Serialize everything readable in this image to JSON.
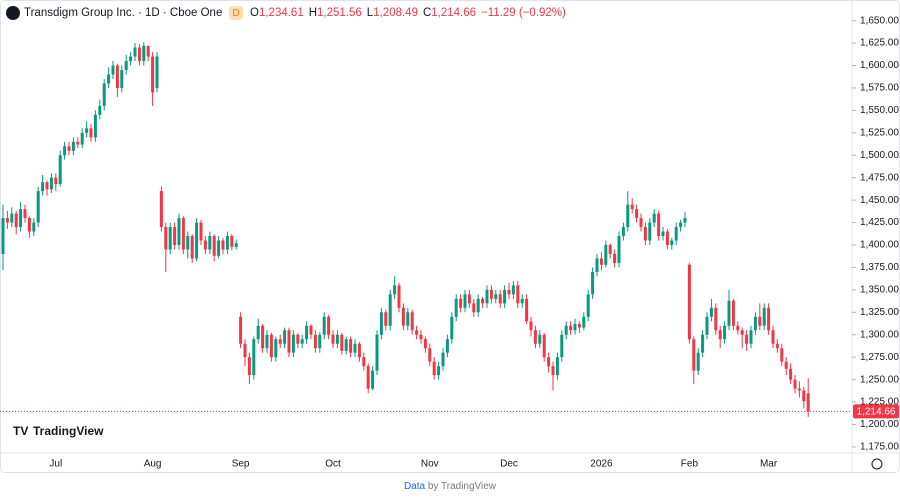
{
  "chart_data": {
    "type": "candlestick",
    "title": "Transdigm Group Inc. · 1D · Cboe One",
    "badge": "D",
    "ohlc_legend": [
      {
        "label": "O",
        "value": "1,234.61"
      },
      {
        "label": "H",
        "value": "1,251.56"
      },
      {
        "label": "L",
        "value": "1,208.49"
      },
      {
        "label": "C",
        "value": "1,214.66"
      }
    ],
    "change": "−11.29 (−0.92%)",
    "last_price_label": "1,214.66",
    "logo": "TradingView",
    "footer": {
      "link": "Data",
      "text": "by TradingView"
    },
    "up_color": "#089981",
    "down_color": "#f23645",
    "ylim": [
      1166,
      1673
    ],
    "yticks": [
      {
        "value": 1175,
        "label": "1,175.00"
      },
      {
        "value": 1200,
        "label": "1,200.00"
      },
      {
        "value": 1225,
        "label": "1,225.00"
      },
      {
        "value": 1250,
        "label": "1,250.00"
      },
      {
        "value": 1275,
        "label": "1,275.00"
      },
      {
        "value": 1300,
        "label": "1,300.00"
      },
      {
        "value": 1325,
        "label": "1,325.00"
      },
      {
        "value": 1350,
        "label": "1,350.00"
      },
      {
        "value": 1375,
        "label": "1,375.00"
      },
      {
        "value": 1400,
        "label": "1,400.00"
      },
      {
        "value": 1425,
        "label": "1,425.00"
      },
      {
        "value": 1450,
        "label": "1,450.00"
      },
      {
        "value": 1475,
        "label": "1,475.00"
      },
      {
        "value": 1500,
        "label": "1,500.00"
      },
      {
        "value": 1525,
        "label": "1,525.00"
      },
      {
        "value": 1550,
        "label": "1,550.00"
      },
      {
        "value": 1575,
        "label": "1,575.00"
      },
      {
        "value": 1600,
        "label": "1,600.00"
      },
      {
        "value": 1625,
        "label": "1,625.00"
      },
      {
        "value": 1650,
        "label": "1,650.00"
      }
    ],
    "categories": [
      null,
      null,
      null,
      null,
      null,
      null,
      null,
      null,
      null,
      null,
      null,
      null,
      "Jul",
      null,
      null,
      null,
      null,
      null,
      null,
      null,
      null,
      null,
      null,
      null,
      null,
      null,
      null,
      null,
      null,
      null,
      null,
      null,
      null,
      null,
      "Aug",
      null,
      null,
      null,
      null,
      null,
      null,
      null,
      null,
      null,
      null,
      null,
      null,
      null,
      null,
      null,
      null,
      null,
      null,
      null,
      "Sep",
      null,
      null,
      null,
      null,
      null,
      null,
      null,
      null,
      null,
      null,
      null,
      null,
      null,
      null,
      null,
      null,
      null,
      null,
      null,
      null,
      "Oct",
      null,
      null,
      null,
      null,
      null,
      null,
      null,
      null,
      null,
      null,
      null,
      null,
      null,
      null,
      null,
      null,
      null,
      null,
      null,
      null,
      null,
      "Nov",
      null,
      null,
      null,
      null,
      null,
      null,
      null,
      null,
      null,
      null,
      null,
      null,
      null,
      null,
      null,
      null,
      null,
      "Dec",
      null,
      null,
      null,
      null,
      null,
      null,
      null,
      null,
      null,
      null,
      null,
      null,
      null,
      null,
      null,
      null,
      null,
      null,
      null,
      null,
      "2026",
      null,
      null,
      null,
      null,
      null,
      null,
      null,
      null,
      null,
      null,
      null,
      null,
      null,
      null,
      null,
      null,
      null,
      null,
      null,
      "Feb",
      null,
      null,
      null,
      null,
      null,
      null,
      null,
      null,
      null,
      null,
      null,
      null,
      null,
      null,
      null,
      null,
      null,
      "Mar",
      null,
      null,
      null,
      null,
      null,
      null,
      null,
      null,
      null
    ],
    "open": [
      1390,
      1430,
      1425,
      1435,
      1420,
      1440,
      1430,
      1415,
      1425,
      1460,
      1470,
      1462,
      1475,
      1468,
      1500,
      1510,
      1505,
      1515,
      1512,
      1525,
      1530,
      1520,
      1545,
      1555,
      1580,
      1590,
      1600,
      1575,
      1595,
      1605,
      1610,
      1620,
      1605,
      1622,
      1610,
      1575,
      1460,
      1420,
      1395,
      1420,
      1400,
      1430,
      1395,
      1410,
      1385,
      1425,
      1405,
      1395,
      1410,
      1388,
      1405,
      1395,
      1410,
      1398,
      1320,
      1290,
      1275,
      1255,
      1295,
      1310,
      1285,
      1300,
      1275,
      1295,
      1290,
      1305,
      1280,
      1300,
      1290,
      1295,
      1310,
      1300,
      1285,
      1300,
      1320,
      1300,
      1290,
      1300,
      1282,
      1295,
      1280,
      1290,
      1275,
      1265,
      1240,
      1260,
      1300,
      1325,
      1310,
      1345,
      1355,
      1330,
      1310,
      1325,
      1305,
      1300,
      1295,
      1285,
      1270,
      1255,
      1265,
      1280,
      1295,
      1320,
      1340,
      1330,
      1345,
      1335,
      1325,
      1340,
      1335,
      1350,
      1340,
      1345,
      1335,
      1350,
      1345,
      1355,
      1335,
      1340,
      1315,
      1305,
      1290,
      1300,
      1275,
      1265,
      1255,
      1275,
      1300,
      1310,
      1305,
      1312,
      1308,
      1320,
      1345,
      1370,
      1385,
      1378,
      1400,
      1390,
      1380,
      1410,
      1420,
      1445,
      1440,
      1430,
      1420,
      1405,
      1425,
      1435,
      1410,
      1415,
      1400,
      1405,
      1420,
      1425,
      1378,
      1295,
      1260,
      1280,
      1300,
      1320,
      1330,
      1305,
      1295,
      1310,
      1338,
      1310,
      1305,
      1300,
      1290,
      1305,
      1320,
      1310,
      1330,
      1305,
      1290,
      1285,
      1270,
      1262,
      1250,
      1240,
      1238,
      1234.61
    ],
    "high": [
      1445,
      1438,
      1442,
      1438,
      1448,
      1445,
      1432,
      1430,
      1465,
      1478,
      1472,
      1480,
      1480,
      1505,
      1515,
      1515,
      1520,
      1520,
      1530,
      1538,
      1535,
      1550,
      1562,
      1585,
      1598,
      1605,
      1602,
      1600,
      1612,
      1615,
      1625,
      1624,
      1626,
      1620,
      1615,
      1615,
      1465,
      1425,
      1425,
      1425,
      1435,
      1432,
      1415,
      1412,
      1430,
      1428,
      1410,
      1415,
      1412,
      1410,
      1408,
      1415,
      1412,
      1406,
      1325,
      1295,
      1280,
      1298,
      1318,
      1312,
      1305,
      1302,
      1298,
      1300,
      1308,
      1308,
      1305,
      1302,
      1300,
      1315,
      1312,
      1305,
      1303,
      1325,
      1322,
      1305,
      1305,
      1302,
      1298,
      1298,
      1295,
      1292,
      1280,
      1268,
      1265,
      1305,
      1330,
      1328,
      1350,
      1365,
      1358,
      1335,
      1330,
      1328,
      1310,
      1305,
      1298,
      1290,
      1275,
      1270,
      1285,
      1300,
      1325,
      1345,
      1345,
      1350,
      1350,
      1340,
      1345,
      1342,
      1355,
      1355,
      1350,
      1350,
      1355,
      1358,
      1360,
      1360,
      1345,
      1345,
      1320,
      1310,
      1305,
      1302,
      1280,
      1270,
      1280,
      1305,
      1315,
      1315,
      1318,
      1315,
      1325,
      1350,
      1375,
      1390,
      1392,
      1405,
      1402,
      1395,
      1415,
      1425,
      1460,
      1452,
      1445,
      1435,
      1425,
      1430,
      1440,
      1438,
      1420,
      1418,
      1408,
      1425,
      1428,
      1437,
      1380,
      1298,
      1285,
      1305,
      1325,
      1340,
      1335,
      1310,
      1315,
      1350,
      1340,
      1315,
      1308,
      1305,
      1310,
      1325,
      1335,
      1335,
      1335,
      1310,
      1295,
      1290,
      1275,
      1268,
      1255,
      1248,
      1242,
      1251.56
    ],
    "low": [
      1372,
      1418,
      1420,
      1412,
      1415,
      1425,
      1408,
      1410,
      1420,
      1455,
      1455,
      1458,
      1460,
      1465,
      1495,
      1500,
      1500,
      1508,
      1508,
      1520,
      1515,
      1515,
      1540,
      1550,
      1575,
      1585,
      1565,
      1570,
      1590,
      1600,
      1605,
      1600,
      1600,
      1605,
      1555,
      1570,
      1415,
      1370,
      1390,
      1395,
      1395,
      1390,
      1385,
      1380,
      1382,
      1400,
      1390,
      1390,
      1382,
      1385,
      1390,
      1390,
      1394,
      1395,
      1285,
      1265,
      1245,
      1250,
      1290,
      1280,
      1280,
      1270,
      1270,
      1285,
      1285,
      1275,
      1275,
      1285,
      1285,
      1290,
      1295,
      1280,
      1280,
      1295,
      1295,
      1285,
      1285,
      1278,
      1278,
      1275,
      1275,
      1270,
      1260,
      1235,
      1238,
      1255,
      1295,
      1305,
      1305,
      1340,
      1325,
      1305,
      1305,
      1300,
      1295,
      1290,
      1280,
      1265,
      1250,
      1250,
      1260,
      1275,
      1290,
      1315,
      1325,
      1325,
      1330,
      1320,
      1320,
      1330,
      1330,
      1335,
      1335,
      1330,
      1330,
      1340,
      1340,
      1330,
      1330,
      1312,
      1298,
      1285,
      1285,
      1270,
      1258,
      1238,
      1250,
      1270,
      1295,
      1300,
      1300,
      1302,
      1305,
      1315,
      1340,
      1365,
      1372,
      1375,
      1385,
      1375,
      1375,
      1405,
      1415,
      1435,
      1425,
      1415,
      1400,
      1400,
      1420,
      1405,
      1405,
      1395,
      1395,
      1400,
      1415,
      1420,
      1290,
      1245,
      1255,
      1275,
      1295,
      1315,
      1300,
      1285,
      1290,
      1305,
      1305,
      1300,
      1285,
      1282,
      1285,
      1300,
      1305,
      1305,
      1300,
      1285,
      1280,
      1265,
      1255,
      1245,
      1235,
      1230,
      1218,
      1208.49
    ],
    "close": [
      1430,
      1425,
      1435,
      1420,
      1440,
      1430,
      1415,
      1425,
      1460,
      1470,
      1462,
      1475,
      1468,
      1500,
      1510,
      1505,
      1515,
      1512,
      1525,
      1530,
      1520,
      1545,
      1555,
      1580,
      1590,
      1600,
      1575,
      1595,
      1605,
      1610,
      1620,
      1605,
      1622,
      1610,
      1570,
      1610,
      1420,
      1395,
      1420,
      1400,
      1430,
      1395,
      1410,
      1385,
      1425,
      1405,
      1395,
      1410,
      1388,
      1405,
      1395,
      1410,
      1398,
      1402,
      1290,
      1275,
      1255,
      1295,
      1310,
      1285,
      1300,
      1275,
      1295,
      1290,
      1305,
      1280,
      1300,
      1290,
      1295,
      1310,
      1300,
      1285,
      1300,
      1320,
      1300,
      1290,
      1300,
      1282,
      1295,
      1280,
      1290,
      1275,
      1265,
      1240,
      1260,
      1300,
      1325,
      1310,
      1345,
      1355,
      1330,
      1310,
      1325,
      1305,
      1300,
      1295,
      1285,
      1270,
      1255,
      1265,
      1280,
      1295,
      1320,
      1340,
      1330,
      1345,
      1335,
      1325,
      1340,
      1335,
      1350,
      1340,
      1345,
      1335,
      1350,
      1345,
      1355,
      1335,
      1340,
      1315,
      1305,
      1290,
      1300,
      1275,
      1265,
      1255,
      1275,
      1300,
      1310,
      1305,
      1312,
      1308,
      1320,
      1345,
      1370,
      1385,
      1378,
      1400,
      1390,
      1380,
      1410,
      1420,
      1445,
      1440,
      1430,
      1420,
      1405,
      1425,
      1435,
      1410,
      1415,
      1400,
      1405,
      1420,
      1425,
      1430,
      1295,
      1260,
      1280,
      1300,
      1320,
      1330,
      1305,
      1295,
      1310,
      1338,
      1310,
      1305,
      1300,
      1290,
      1305,
      1320,
      1310,
      1330,
      1305,
      1290,
      1285,
      1270,
      1262,
      1250,
      1240,
      1238,
      1225.95,
      1214.66
    ]
  }
}
